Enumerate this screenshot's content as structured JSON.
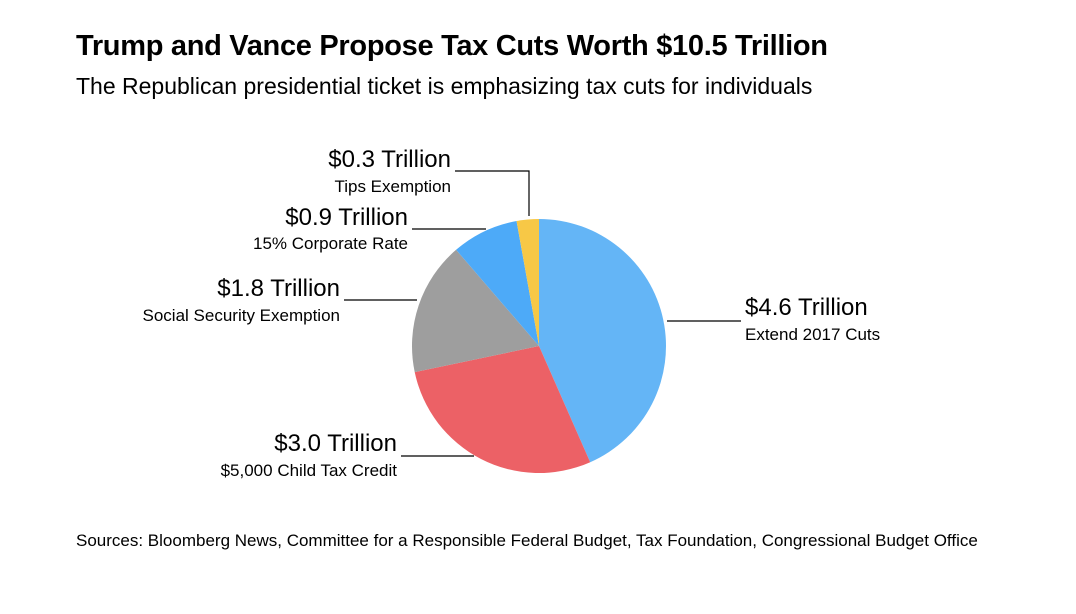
{
  "title": "Trump and Vance Propose Tax Cuts Worth $10.5 Trillion",
  "subtitle": "The Republican presidential ticket is emphasizing tax cuts for individuals",
  "source": "Sources: Bloomberg News, Committee for a Responsible Federal Budget, Tax Foundation, Congressional Budget Office",
  "chart_data": {
    "type": "pie",
    "title": "Trump and Vance Propose Tax Cuts Worth $10.5 Trillion",
    "subtitle": "The Republican presidential ticket is emphasizing tax cuts for individuals",
    "unit": "Trillion",
    "total": 10.5,
    "slices": [
      {
        "label": "Extend 2017 Cuts",
        "value": 4.6,
        "value_label": "$4.6 Trillion",
        "color": "#64B5F6"
      },
      {
        "label": "$5,000 Child Tax Credit",
        "value": 3.0,
        "value_label": "$3.0 Trillion",
        "color": "#EC6166"
      },
      {
        "label": "Social Security Exemption",
        "value": 1.8,
        "value_label": "$1.8 Trillion",
        "color": "#9E9E9E"
      },
      {
        "label": "15% Corporate Rate",
        "value": 0.9,
        "value_label": "$0.9 Trillion",
        "color": "#4DAAF8"
      },
      {
        "label": "Tips Exemption",
        "value": 0.3,
        "value_label": "$0.3 Trillion",
        "color": "#F7C846"
      }
    ]
  }
}
